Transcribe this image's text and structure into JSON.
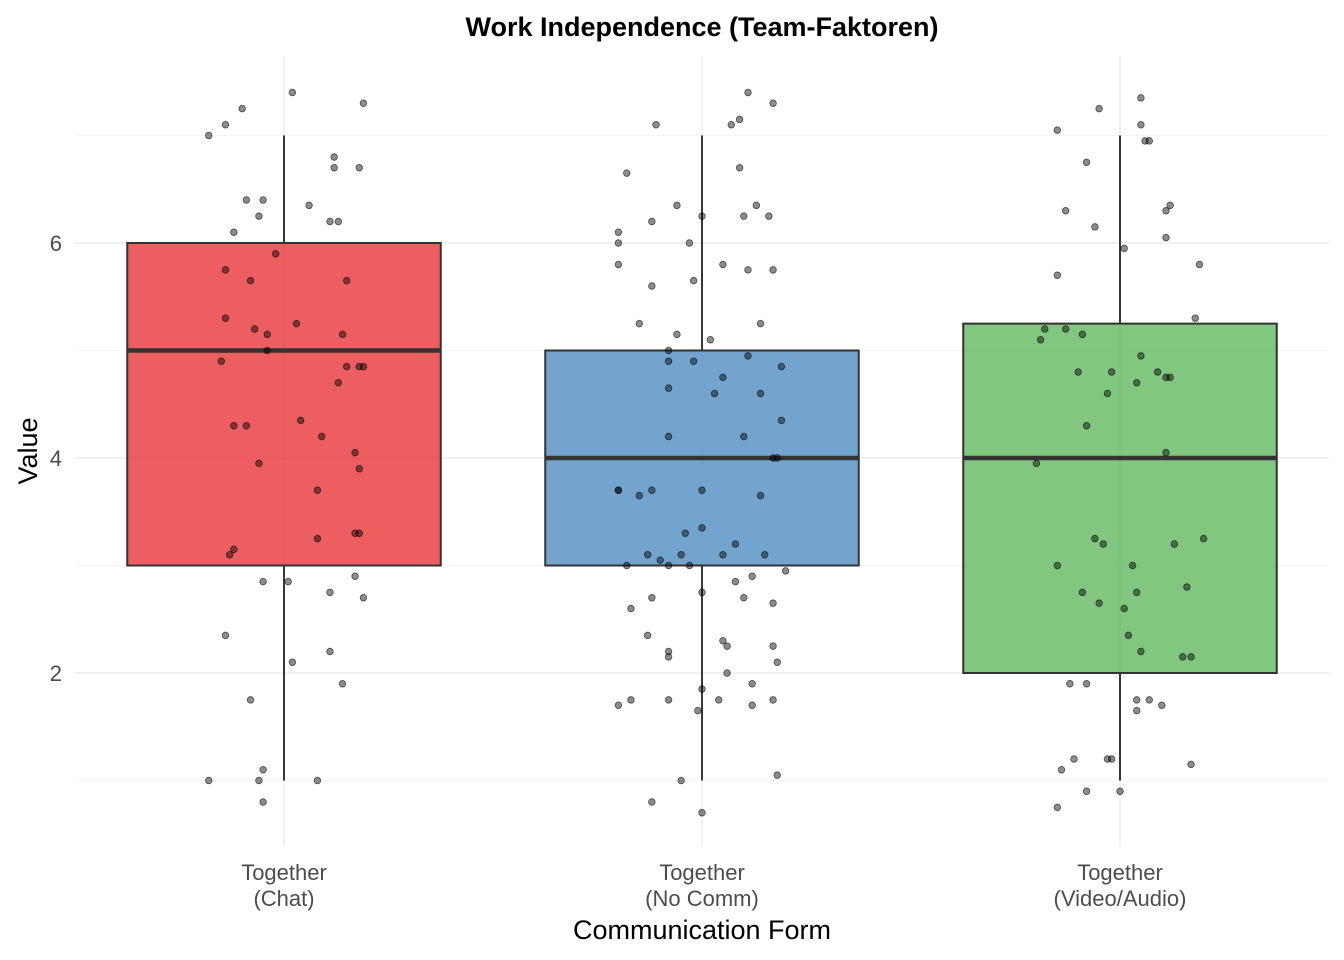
{
  "chart_data": {
    "type": "box",
    "title": "Work Independence (Team-Faktoren)",
    "xlabel": "Communication Form",
    "ylabel": "Value",
    "ylim": [
      0.6,
      7.7
    ],
    "yticks": [
      2,
      4,
      6
    ],
    "grid": true,
    "categories": [
      [
        "Together",
        "(Chat)"
      ],
      [
        "Together",
        "(No Comm)"
      ],
      [
        "Together",
        "(Video/Audio)"
      ]
    ],
    "boxes": [
      {
        "color": "#e41a1c",
        "q1": 3,
        "median": 5,
        "q3": 6,
        "whisker_low": 1,
        "whisker_high": 7,
        "points": [
          [
            -0.18,
            1.0
          ],
          [
            -0.06,
            1.0
          ],
          [
            0.08,
            1.0
          ],
          [
            -0.05,
            0.8
          ],
          [
            -0.05,
            1.1
          ],
          [
            -0.08,
            1.75
          ],
          [
            -0.14,
            2.35
          ],
          [
            0.02,
            2.1
          ],
          [
            0.11,
            2.2
          ],
          [
            0.14,
            1.9
          ],
          [
            -0.05,
            2.85
          ],
          [
            0.01,
            2.85
          ],
          [
            0.11,
            2.75
          ],
          [
            0.17,
            2.9
          ],
          [
            0.19,
            2.7
          ],
          [
            -0.13,
            3.1
          ],
          [
            -0.12,
            3.15
          ],
          [
            0.08,
            3.25
          ],
          [
            0.17,
            3.3
          ],
          [
            0.18,
            3.3
          ],
          [
            -0.06,
            3.95
          ],
          [
            0.08,
            3.7
          ],
          [
            -0.12,
            4.3
          ],
          [
            -0.09,
            4.3
          ],
          [
            0.04,
            4.35
          ],
          [
            0.09,
            4.2
          ],
          [
            0.17,
            4.05
          ],
          [
            0.18,
            3.9
          ],
          [
            -0.15,
            4.9
          ],
          [
            0.13,
            4.7
          ],
          [
            0.15,
            4.85
          ],
          [
            0.18,
            4.85
          ],
          [
            0.19,
            4.85
          ],
          [
            -0.04,
            5.0
          ],
          [
            -0.14,
            5.3
          ],
          [
            -0.07,
            5.2
          ],
          [
            -0.04,
            5.15
          ],
          [
            0.03,
            5.25
          ],
          [
            0.14,
            5.15
          ],
          [
            -0.14,
            5.75
          ],
          [
            -0.08,
            5.65
          ],
          [
            0.15,
            5.65
          ],
          [
            -0.02,
            5.9
          ],
          [
            -0.12,
            6.1
          ],
          [
            -0.06,
            6.25
          ],
          [
            -0.05,
            6.4
          ],
          [
            -0.09,
            6.4
          ],
          [
            0.06,
            6.35
          ],
          [
            0.11,
            6.2
          ],
          [
            0.13,
            6.2
          ],
          [
            0.12,
            6.7
          ],
          [
            0.12,
            6.8
          ],
          [
            0.18,
            6.7
          ],
          [
            -0.18,
            7.0
          ],
          [
            -0.14,
            7.1
          ],
          [
            -0.1,
            7.25
          ],
          [
            0.02,
            7.4
          ],
          [
            0.19,
            7.3
          ]
        ]
      },
      {
        "color": "#377eb8",
        "q1": 3,
        "median": 4,
        "q3": 5,
        "whisker_low": 1,
        "whisker_high": 7,
        "points": [
          [
            0.0,
            0.7
          ],
          [
            -0.12,
            0.8
          ],
          [
            -0.05,
            1.0
          ],
          [
            0.18,
            1.05
          ],
          [
            -0.2,
            1.7
          ],
          [
            -0.17,
            1.75
          ],
          [
            -0.08,
            1.75
          ],
          [
            0.0,
            1.85
          ],
          [
            0.04,
            1.75
          ],
          [
            -0.01,
            1.65
          ],
          [
            0.12,
            1.7
          ],
          [
            0.17,
            1.75
          ],
          [
            0.12,
            1.9
          ],
          [
            0.06,
            2.0
          ],
          [
            -0.08,
            2.15
          ],
          [
            -0.08,
            2.2
          ],
          [
            0.06,
            2.25
          ],
          [
            0.05,
            2.3
          ],
          [
            0.17,
            2.25
          ],
          [
            0.18,
            2.1
          ],
          [
            -0.17,
            2.6
          ],
          [
            -0.12,
            2.7
          ],
          [
            -0.13,
            2.35
          ],
          [
            0.0,
            2.75
          ],
          [
            0.1,
            2.7
          ],
          [
            0.12,
            2.9
          ],
          [
            0.08,
            2.85
          ],
          [
            0.17,
            2.65
          ],
          [
            0.2,
            2.95
          ],
          [
            -0.18,
            3.0
          ],
          [
            -0.08,
            3.0
          ],
          [
            -0.03,
            3.0
          ],
          [
            -0.13,
            3.1
          ],
          [
            -0.1,
            3.05
          ],
          [
            -0.05,
            3.1
          ],
          [
            0.05,
            3.1
          ],
          [
            0.08,
            3.2
          ],
          [
            0.15,
            3.1
          ],
          [
            0.0,
            3.35
          ],
          [
            -0.04,
            3.3
          ],
          [
            -0.2,
            3.7
          ],
          [
            -0.2,
            3.7
          ],
          [
            -0.15,
            3.65
          ],
          [
            -0.12,
            3.7
          ],
          [
            0.0,
            3.7
          ],
          [
            0.14,
            3.65
          ],
          [
            -0.08,
            4.2
          ],
          [
            0.1,
            4.2
          ],
          [
            0.17,
            4.0
          ],
          [
            0.18,
            4.0
          ],
          [
            0.19,
            4.35
          ],
          [
            -0.08,
            4.65
          ],
          [
            0.03,
            4.6
          ],
          [
            0.14,
            4.6
          ],
          [
            -0.08,
            4.9
          ],
          [
            -0.02,
            4.9
          ],
          [
            0.05,
            4.75
          ],
          [
            0.11,
            4.95
          ],
          [
            0.19,
            4.85
          ],
          [
            -0.08,
            5.0
          ],
          [
            -0.15,
            5.25
          ],
          [
            -0.06,
            5.15
          ],
          [
            0.02,
            5.1
          ],
          [
            0.14,
            5.25
          ],
          [
            -0.2,
            5.8
          ],
          [
            -0.12,
            5.6
          ],
          [
            -0.02,
            5.65
          ],
          [
            0.05,
            5.8
          ],
          [
            0.11,
            5.75
          ],
          [
            0.17,
            5.75
          ],
          [
            -0.2,
            6.1
          ],
          [
            -0.2,
            6.0
          ],
          [
            -0.12,
            6.2
          ],
          [
            -0.06,
            6.35
          ],
          [
            -0.03,
            6.0
          ],
          [
            0.0,
            6.25
          ],
          [
            0.1,
            6.25
          ],
          [
            0.13,
            6.35
          ],
          [
            0.16,
            6.25
          ],
          [
            -0.18,
            6.65
          ],
          [
            0.09,
            6.7
          ],
          [
            -0.11,
            7.1
          ],
          [
            0.07,
            7.1
          ],
          [
            0.09,
            7.15
          ],
          [
            0.11,
            7.4
          ],
          [
            0.17,
            7.3
          ]
        ]
      },
      {
        "color": "#4daf4a",
        "q1": 2,
        "median": 4,
        "q3": 5.25,
        "whisker_low": 1,
        "whisker_high": 7,
        "points": [
          [
            -0.15,
            0.75
          ],
          [
            -0.08,
            0.9
          ],
          [
            0.0,
            0.9
          ],
          [
            -0.14,
            1.1
          ],
          [
            -0.11,
            1.2
          ],
          [
            -0.03,
            1.2
          ],
          [
            -0.02,
            1.2
          ],
          [
            0.17,
            1.15
          ],
          [
            -0.12,
            1.9
          ],
          [
            -0.08,
            1.9
          ],
          [
            0.04,
            1.75
          ],
          [
            0.04,
            1.65
          ],
          [
            0.07,
            1.75
          ],
          [
            0.1,
            1.7
          ],
          [
            0.15,
            2.15
          ],
          [
            0.17,
            2.15
          ],
          [
            0.05,
            2.2
          ],
          [
            0.02,
            2.35
          ],
          [
            -0.05,
            2.65
          ],
          [
            0.01,
            2.6
          ],
          [
            -0.09,
            2.75
          ],
          [
            0.04,
            2.75
          ],
          [
            0.16,
            2.8
          ],
          [
            -0.15,
            3.0
          ],
          [
            0.03,
            3.0
          ],
          [
            -0.06,
            3.25
          ],
          [
            -0.04,
            3.2
          ],
          [
            0.13,
            3.2
          ],
          [
            0.2,
            3.25
          ],
          [
            -0.2,
            3.95
          ],
          [
            -0.08,
            4.3
          ],
          [
            -0.03,
            4.6
          ],
          [
            0.11,
            4.05
          ],
          [
            -0.1,
            4.8
          ],
          [
            -0.02,
            4.8
          ],
          [
            0.04,
            4.7
          ],
          [
            0.09,
            4.8
          ],
          [
            0.11,
            4.75
          ],
          [
            0.12,
            4.75
          ],
          [
            0.05,
            4.95
          ],
          [
            -0.19,
            5.1
          ],
          [
            -0.18,
            5.2
          ],
          [
            -0.13,
            5.2
          ],
          [
            -0.09,
            5.15
          ],
          [
            0.18,
            5.3
          ],
          [
            -0.15,
            5.7
          ],
          [
            0.19,
            5.8
          ],
          [
            -0.13,
            6.3
          ],
          [
            -0.06,
            6.15
          ],
          [
            0.01,
            5.95
          ],
          [
            0.11,
            6.05
          ],
          [
            0.11,
            6.3
          ],
          [
            0.12,
            6.35
          ],
          [
            -0.08,
            6.75
          ],
          [
            -0.15,
            7.05
          ],
          [
            -0.05,
            7.25
          ],
          [
            0.05,
            7.35
          ],
          [
            0.05,
            7.1
          ],
          [
            0.06,
            6.95
          ],
          [
            0.07,
            6.95
          ]
        ]
      }
    ]
  }
}
